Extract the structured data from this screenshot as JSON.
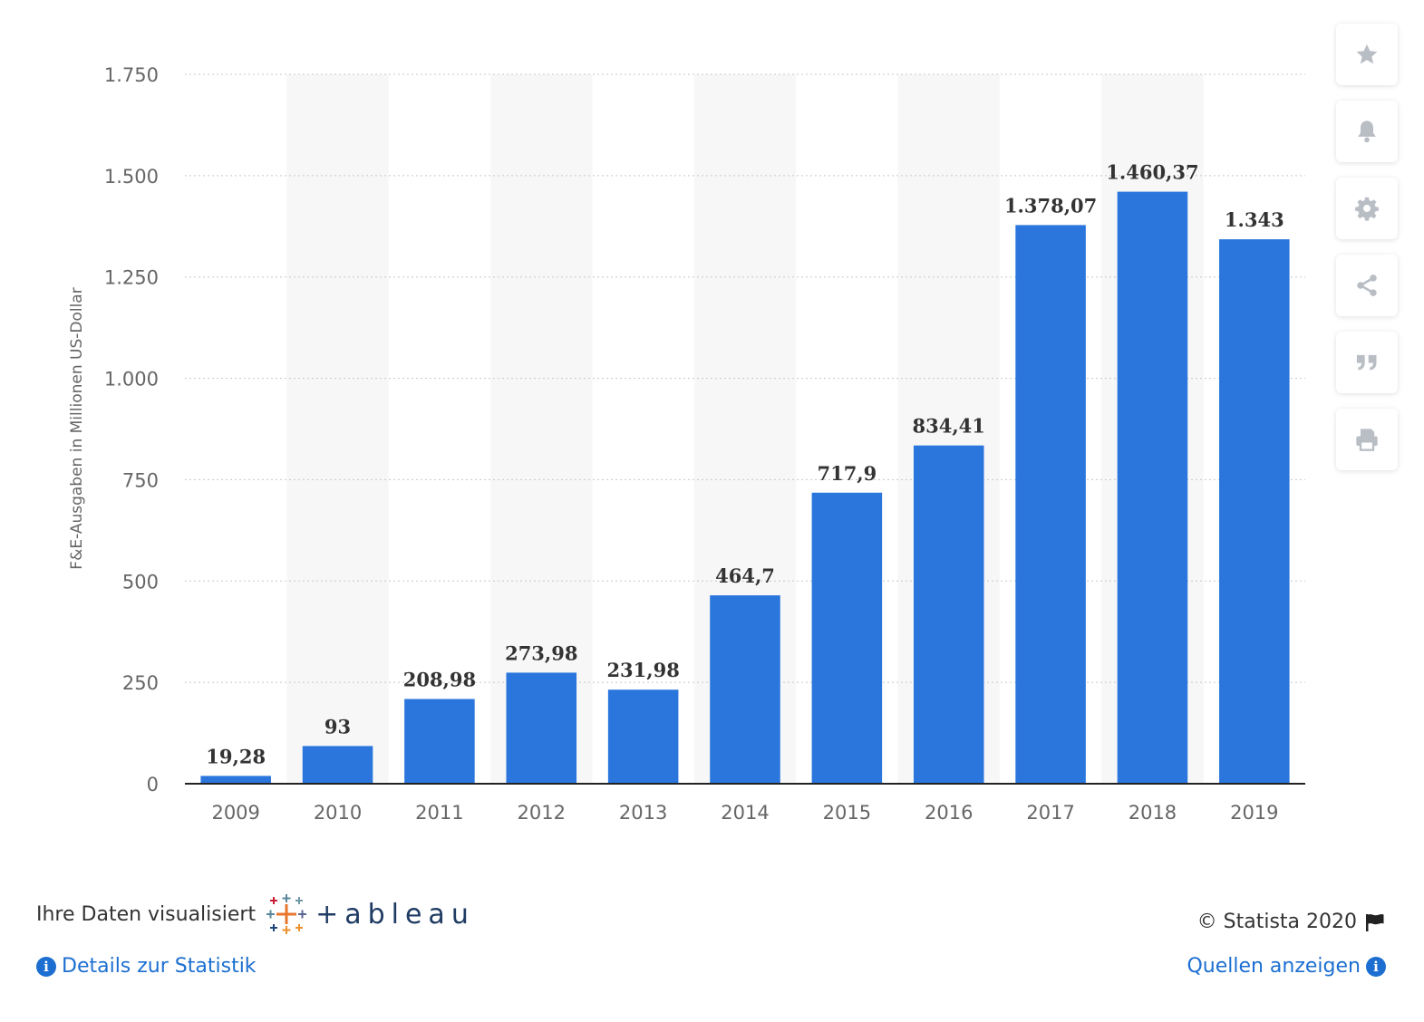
{
  "chart_data": {
    "type": "bar",
    "categories": [
      "2009",
      "2010",
      "2011",
      "2012",
      "2013",
      "2014",
      "2015",
      "2016",
      "2017",
      "2018",
      "2019"
    ],
    "values": [
      19.28,
      93,
      208.98,
      273.98,
      231.98,
      464.7,
      717.9,
      834.41,
      1378.07,
      1460.37,
      1343
    ],
    "value_labels": [
      "19,28",
      "93",
      "208,98",
      "273,98",
      "231,98",
      "464,7",
      "717,9",
      "834,41",
      "1.378,07",
      "1.460,37",
      "1.343"
    ],
    "ylabel": "F&E-Ausgaben in Millionen US-Dollar",
    "ylim": [
      0,
      1750
    ],
    "yticks": [
      0,
      250,
      500,
      750,
      1000,
      1250,
      1500,
      1750
    ],
    "ytick_labels": [
      "0",
      "250",
      "500",
      "750",
      "1.000",
      "1.250",
      "1.500",
      "1.750"
    ],
    "bar_color": "#2a76dd",
    "grid": true,
    "alternating_column_shading": "#f7f7f7"
  },
  "toolbar": {
    "icons": [
      "star-icon",
      "bell-icon",
      "gear-icon",
      "share-icon",
      "quote-icon",
      "print-icon"
    ]
  },
  "footer": {
    "visualized_by": "Ihre Daten visualisiert",
    "tableau_wordmark": "+ableau",
    "copyright": "© Statista 2020",
    "details_link": "Details zur Statistik",
    "sources_link": "Quellen anzeigen",
    "link_color": "#1c6fd1"
  }
}
